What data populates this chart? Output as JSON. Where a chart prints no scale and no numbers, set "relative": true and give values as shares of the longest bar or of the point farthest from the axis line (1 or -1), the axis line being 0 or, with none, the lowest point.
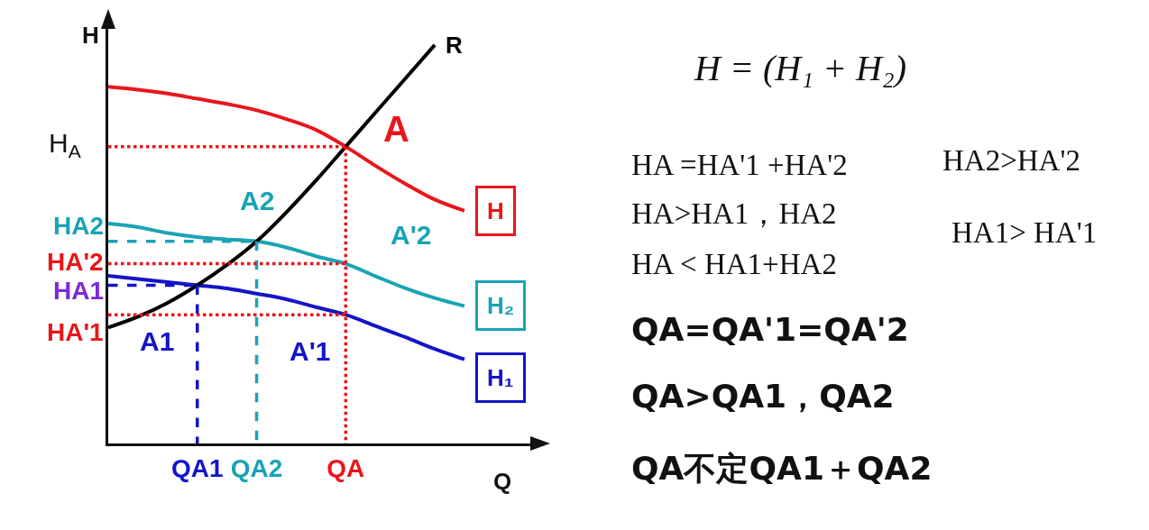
{
  "chart_data": [
    {
      "type": "line",
      "relative": true,
      "xlabel": "Q",
      "ylabel": "H",
      "categories": [
        null,
        null,
        null,
        "QA1",
        null,
        "QA2",
        null,
        null,
        "QA",
        null,
        null,
        null,
        null,
        null,
        null
      ],
      "series": [
        {
          "name": "H",
          "color": "#e8161b",
          "values": [
            0.895,
            0.888,
            0.878,
            0.865,
            0.852,
            0.836,
            0.814,
            0.787,
            0.745,
            0.697,
            0.652,
            0.612,
            0.584,
            null,
            null
          ]
        },
        {
          "name": "H₂",
          "color": "#1aa3b5",
          "values": [
            0.552,
            0.543,
            0.528,
            0.518,
            0.512,
            0.507,
            0.492,
            0.47,
            0.451,
            0.42,
            0.39,
            0.365,
            0.345,
            null,
            null
          ]
        },
        {
          "name": "H₁",
          "color": "#1414c8",
          "values": [
            0.421,
            0.413,
            0.405,
            0.397,
            0.389,
            0.376,
            0.362,
            0.342,
            0.323,
            0.295,
            0.267,
            0.237,
            0.211,
            null,
            null
          ]
        },
        {
          "name": "R",
          "color": "#000000",
          "values": [
            0.291,
            0.318,
            0.353,
            0.397,
            0.448,
            0.507,
            0.58,
            0.66,
            0.745,
            0.83,
            0.915,
            1,
            null,
            null,
            null
          ]
        },
        {
          "color": "#e8161b",
          "line_style": "dotted",
          "values": [
            0.745,
            0.745,
            0.745,
            0.745,
            0.745,
            0.745,
            0.745,
            0.745,
            0.745,
            null,
            null,
            null,
            null,
            null,
            null
          ]
        },
        {
          "color": "#e8161b",
          "line_style": "dotted",
          "x": [
            "QA",
            "QA"
          ],
          "values": [
            0.745,
            0
          ]
        },
        {
          "color": "#1aa3b5",
          "line_style": "dashed",
          "values": [
            0.507,
            0.507,
            0.507,
            0.507,
            0.507,
            0.507,
            null,
            null,
            null,
            null,
            null,
            null,
            null,
            null,
            null
          ]
        },
        {
          "color": "#1aa3b5",
          "line_style": "dashed",
          "x": [
            "QA2",
            "QA2"
          ],
          "values": [
            0.507,
            0
          ]
        },
        {
          "color": "#e8161b",
          "line_style": "dotted",
          "values": [
            0.451,
            0.451,
            0.451,
            0.451,
            0.451,
            0.451,
            0.451,
            0.451,
            0.451,
            null,
            null,
            null,
            null,
            null,
            null
          ]
        },
        {
          "color": "#1414c8",
          "line_style": "dashed",
          "values": [
            0.397,
            0.397,
            0.397,
            0.397,
            null,
            null,
            null,
            null,
            null,
            null,
            null,
            null,
            null,
            null,
            null
          ]
        },
        {
          "color": "#1414c8",
          "line_style": "dashed",
          "x": [
            "QA1",
            "QA1"
          ],
          "values": [
            0.397,
            0
          ]
        },
        {
          "color": "#e8161b",
          "line_style": "dotted",
          "values": [
            0.323,
            0.323,
            0.323,
            0.323,
            0.323,
            0.323,
            0.323,
            0.323,
            0.323,
            null,
            null,
            null,
            null,
            null,
            null
          ]
        }
      ],
      "annotations": [
        "H$_{A}$",
        "HA2",
        "HA'2",
        "HA1",
        "HA'1",
        {
          "text": "A",
          "x": "QA",
          "y": 0.745
        },
        {
          "text": "A2",
          "x": "QA2",
          "y": 0.507
        },
        {
          "text": "A'2",
          "x": "QA",
          "y": 0.451
        },
        {
          "text": "A1",
          "x": "QA1",
          "y": 0.397
        },
        {
          "text": "A'1",
          "x": "QA",
          "y": 0.323
        }
      ]
    },
    {
      "type": "other",
      "annotations": [
        "H = (H₁ + H₂)",
        "HA =HA'1 +HA'2",
        "HA2>HA'2",
        "HA>HA1，HA2",
        "HA1> HA'1",
        "HA < HA1+HA2",
        "QA=QA'1=QA'2",
        "QA>QA1，QA2",
        "QA不定QA1＋QA2"
      ]
    }
  ]
}
